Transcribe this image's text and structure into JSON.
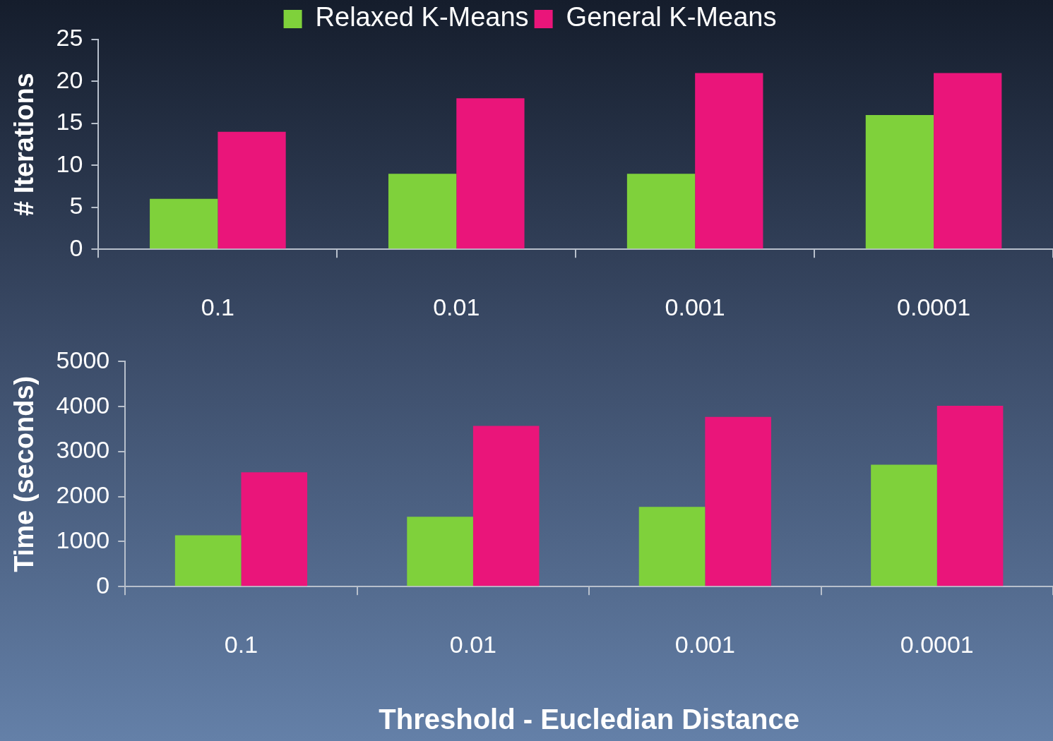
{
  "chart_data": [
    {
      "type": "bar",
      "categories": [
        "0.1",
        "0.01",
        "0.001",
        "0.0001"
      ],
      "ylabel": "# Iterations",
      "ylim": [
        0,
        25
      ],
      "yticks": [
        0,
        5,
        10,
        15,
        20,
        25
      ],
      "grid": false,
      "legend": "top",
      "series": [
        {
          "name": "Relaxed K-Means",
          "color": "#7fd13b",
          "values": [
            6,
            9,
            9,
            16
          ]
        },
        {
          "name": "General K-Means",
          "color": "#ea157a",
          "values": [
            14,
            18,
            21,
            21
          ]
        }
      ]
    },
    {
      "type": "bar",
      "categories": [
        "0.1",
        "0.01",
        "0.001",
        "0.0001"
      ],
      "ylabel": "Time (seconds)",
      "xlabel": "Threshold - Eucledian Distance",
      "ylim": [
        0,
        5000
      ],
      "yticks": [
        0,
        1000,
        2000,
        3000,
        4000,
        5000
      ],
      "grid": false,
      "legend": false,
      "series": [
        {
          "color": "#7fd13b",
          "values": [
            1140,
            1550,
            1770,
            2710
          ]
        },
        {
          "color": "#ea157a",
          "values": [
            2540,
            3570,
            3770,
            4020
          ]
        }
      ]
    }
  ]
}
